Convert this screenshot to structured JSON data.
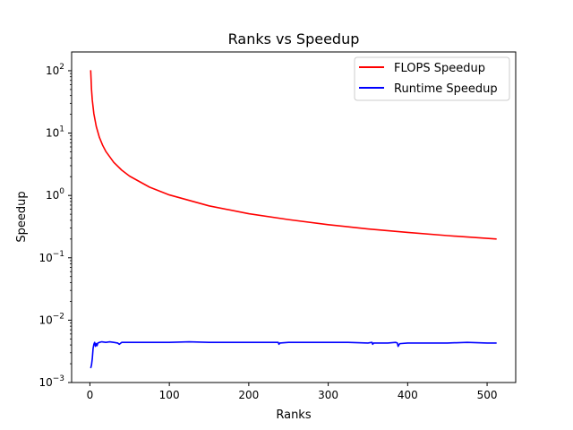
{
  "chart_data": {
    "type": "line",
    "title": "Ranks vs Speedup",
    "xlabel": "Ranks",
    "ylabel": "Speedup",
    "xlim": [
      -23,
      536
    ],
    "ylim": [
      0.001,
      200
    ],
    "yscale": "log",
    "grid": false,
    "legend_position": "top-right",
    "x_ticks": [
      0,
      100,
      200,
      300,
      400,
      500
    ],
    "y_ticks": [
      {
        "value": 0.001,
        "base": "10",
        "exp": "−3"
      },
      {
        "value": 0.01,
        "base": "10",
        "exp": "−2"
      },
      {
        "value": 0.1,
        "base": "10",
        "exp": "−1"
      },
      {
        "value": 1,
        "base": "10",
        "exp": "0"
      },
      {
        "value": 10,
        "base": "10",
        "exp": "1"
      },
      {
        "value": 100,
        "base": "10",
        "exp": "2"
      }
    ],
    "series": [
      {
        "name": "FLOPS Speedup",
        "color": "#ff0000",
        "x": [
          1,
          2,
          3,
          5,
          8,
          12,
          16,
          20,
          30,
          40,
          50,
          75,
          100,
          150,
          200,
          250,
          300,
          350,
          400,
          450,
          512
        ],
        "y": [
          102,
          51,
          34,
          20.4,
          12.8,
          8.5,
          6.4,
          5.1,
          3.4,
          2.55,
          2.04,
          1.36,
          1.02,
          0.68,
          0.51,
          0.41,
          0.34,
          0.29,
          0.255,
          0.227,
          0.2
        ]
      },
      {
        "name": "Runtime Speedup",
        "color": "#0000ff",
        "x": [
          1,
          2,
          3,
          4,
          5,
          6,
          7,
          8,
          9,
          10,
          12,
          15,
          20,
          25,
          30,
          35,
          37,
          38,
          40,
          50,
          75,
          100,
          125,
          150,
          175,
          200,
          225,
          237,
          238,
          239,
          250,
          275,
          300,
          325,
          350,
          355,
          356,
          357,
          360,
          375,
          385,
          387,
          388,
          390,
          400,
          425,
          450,
          475,
          500,
          512
        ],
        "y": [
          0.0017,
          0.0019,
          0.0024,
          0.0035,
          0.0041,
          0.0044,
          0.0038,
          0.0042,
          0.0039,
          0.0043,
          0.0044,
          0.0045,
          0.0044,
          0.0045,
          0.0044,
          0.0043,
          0.0041,
          0.0042,
          0.0044,
          0.0044,
          0.0044,
          0.0044,
          0.0045,
          0.0044,
          0.0044,
          0.0044,
          0.0044,
          0.0044,
          0.0041,
          0.0043,
          0.0044,
          0.0044,
          0.0044,
          0.0044,
          0.0043,
          0.0044,
          0.0041,
          0.0043,
          0.0043,
          0.0043,
          0.0044,
          0.0043,
          0.0038,
          0.0042,
          0.0043,
          0.0043,
          0.0043,
          0.0044,
          0.0043,
          0.0043
        ]
      }
    ]
  }
}
